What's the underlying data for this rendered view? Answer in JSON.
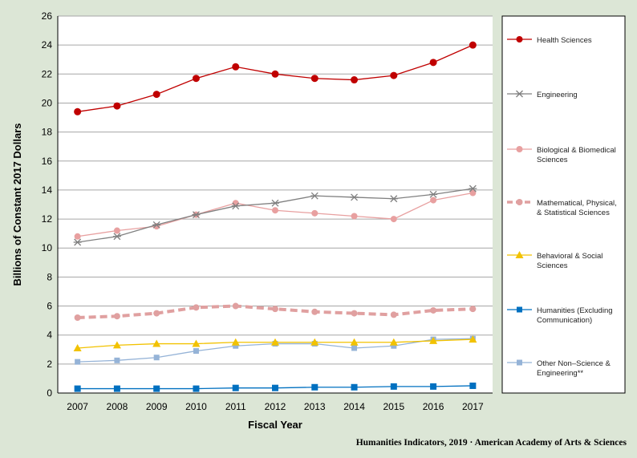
{
  "chart_data": {
    "type": "line",
    "x": [
      "2007",
      "2008",
      "2009",
      "2010",
      "2011",
      "2012",
      "2013",
      "2014",
      "2015",
      "2016",
      "2017"
    ],
    "xlabel": "Fiscal Year",
    "ylabel": "Billions of Constant 2017 Dollars",
    "ylim": [
      0,
      26
    ],
    "yticks": [
      "0",
      "2",
      "4",
      "6",
      "8",
      "10",
      "12",
      "14",
      "16",
      "18",
      "20",
      "22",
      "24",
      "26"
    ],
    "grid": true,
    "legend_position": "right",
    "series": [
      {
        "name_lines": [
          "Health Sciences"
        ],
        "color": "#c00000",
        "marker": "circle",
        "style": "solid",
        "values": [
          19.4,
          19.8,
          20.6,
          21.7,
          22.5,
          22.0,
          21.7,
          21.6,
          21.9,
          22.8,
          24.0
        ]
      },
      {
        "name_lines": [
          "Engineering"
        ],
        "color": "#808080",
        "marker": "star",
        "style": "solid",
        "values": [
          10.4,
          10.8,
          11.6,
          12.3,
          12.9,
          13.1,
          13.6,
          13.5,
          13.4,
          13.7,
          14.1
        ]
      },
      {
        "name_lines": [
          "Biological & Biomedical",
          "Sciences"
        ],
        "color": "#e8a0a0",
        "marker": "circle",
        "style": "solid",
        "values": [
          10.8,
          11.2,
          11.5,
          12.3,
          13.1,
          12.6,
          12.4,
          12.2,
          12.0,
          13.3,
          13.8
        ]
      },
      {
        "name_lines": [
          "Mathematical, Physical,",
          "& Statistical Sciences"
        ],
        "color": "#e0a0a0",
        "marker": "circle",
        "style": "dashed",
        "values": [
          5.2,
          5.3,
          5.5,
          5.9,
          6.0,
          5.8,
          5.6,
          5.5,
          5.4,
          5.7,
          5.8
        ]
      },
      {
        "name_lines": [
          "Behavioral & Social",
          "Sciences"
        ],
        "color": "#f2c200",
        "marker": "triangle",
        "style": "solid",
        "values": [
          3.1,
          3.3,
          3.4,
          3.4,
          3.5,
          3.5,
          3.5,
          3.5,
          3.5,
          3.6,
          3.7
        ]
      },
      {
        "name_lines": [
          "Humanities (Excluding",
          "Communication)"
        ],
        "color": "#0070c0",
        "marker": "square",
        "style": "solid",
        "values": [
          0.3,
          0.3,
          0.3,
          0.3,
          0.35,
          0.35,
          0.4,
          0.4,
          0.45,
          0.45,
          0.5
        ]
      },
      {
        "name_lines": [
          "Other Non–Science &",
          "Engineering**"
        ],
        "color": "#95b3d7",
        "marker": "square",
        "style": "solid",
        "values": [
          2.15,
          2.25,
          2.45,
          2.9,
          3.25,
          3.4,
          3.4,
          3.1,
          3.25,
          3.7,
          3.75
        ]
      }
    ]
  },
  "source": "Humanities  Indicators, 2019  · American Academy of Arts & Sciences"
}
